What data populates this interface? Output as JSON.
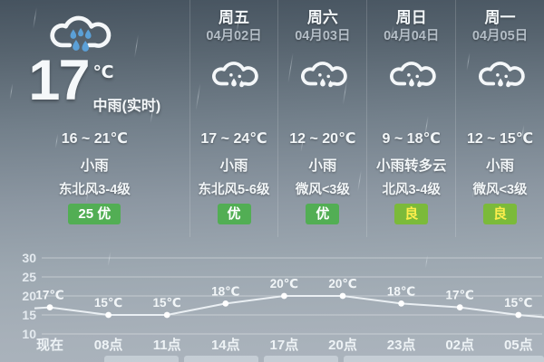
{
  "current": {
    "temp": "17",
    "temp_unit": "℃",
    "condition_now": "中雨(实时)",
    "range": "16 ~ 21℃",
    "condition": "小雨",
    "wind": "东北风3-4级",
    "aqi": {
      "label": "25 优",
      "level": "excellent"
    },
    "icon": "rain-cloud-icon"
  },
  "forecast": [
    {
      "day": "周五",
      "date": "04月02日",
      "range": "17 ~ 24℃",
      "condition": "小雨",
      "wind": "东北风5-6级",
      "aqi": {
        "label": "优",
        "level": "excellent"
      },
      "icon": "rain-cloud-icon"
    },
    {
      "day": "周六",
      "date": "04月03日",
      "range": "12 ~ 20℃",
      "condition": "小雨",
      "wind": "微风<3级",
      "aqi": {
        "label": "优",
        "level": "excellent"
      },
      "icon": "rain-cloud-icon"
    },
    {
      "day": "周日",
      "date": "04月04日",
      "range": "9 ~ 18℃",
      "condition": "小雨转多云",
      "wind": "北风3-4级",
      "aqi": {
        "label": "良",
        "level": "good"
      },
      "icon": "rain-cloud-icon"
    },
    {
      "day": "周一",
      "date": "04月05日",
      "range": "12 ~ 15℃",
      "condition": "小雨",
      "wind": "微风<3级",
      "aqi": {
        "label": "良",
        "level": "good"
      },
      "icon": "rain-cloud-icon"
    }
  ],
  "colors": {
    "aqi_excellent_bg": "#52ae54",
    "aqi_excellent_text": "#ffffff",
    "aqi_good_bg": "#7bba3a",
    "aqi_good_text": "#fdee4c",
    "chart_line": "#eaeff3",
    "chart_grid": "rgba(255,255,255,0.38)",
    "raindrop_blue": "#5ba0d7",
    "text_main": "#f2f6f8"
  },
  "chart_data": {
    "type": "line",
    "categories": [
      "现在",
      "08点",
      "11点",
      "14点",
      "17点",
      "20点",
      "23点",
      "02点",
      "05点"
    ],
    "values": [
      17,
      15,
      15,
      18,
      20,
      20,
      18,
      17,
      15
    ],
    "point_labels": [
      "17℃",
      "15℃",
      "15℃",
      "18℃",
      "20℃",
      "20℃",
      "18℃",
      "17℃",
      "15℃"
    ],
    "yticks": [
      30,
      25,
      20,
      15,
      10
    ],
    "ylim": [
      10,
      30
    ],
    "title": "",
    "xlabel": "",
    "ylabel": "",
    "grid": true,
    "legend": false
  }
}
